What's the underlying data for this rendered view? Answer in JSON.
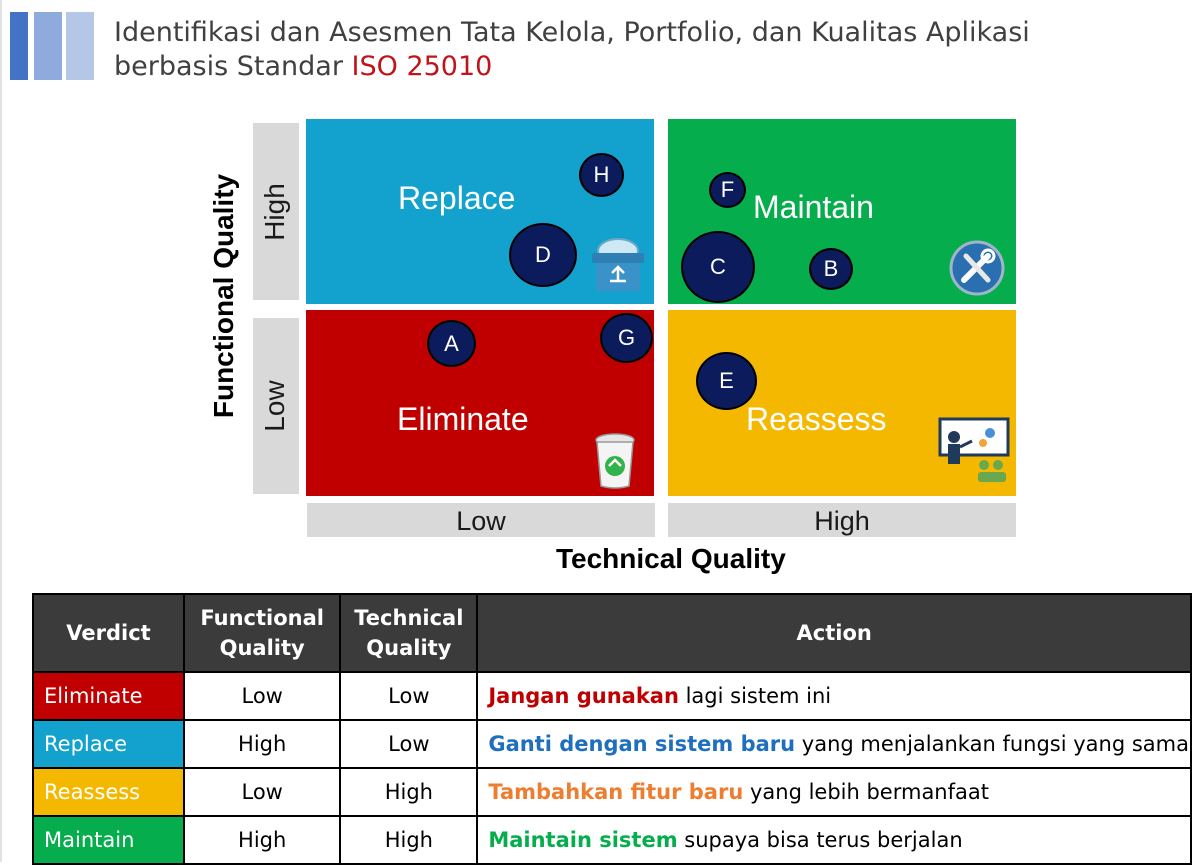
{
  "header": {
    "title_line1": "Identifikasi dan Asesmen Tata Kelola, Portfolio, dan Kualitas Aplikasi",
    "title_line2_prefix": "berbasis Standar ",
    "title_line2_accent": "ISO 25010",
    "accent_color": "#c0141b",
    "bar_colors": [
      "#4472c4",
      "#8faadc",
      "#b4c7e7"
    ]
  },
  "matrix": {
    "y_axis_title": "Functional Quality",
    "x_axis_title": "Technical Quality",
    "y_labels": {
      "high": "High",
      "low": "Low"
    },
    "x_labels": {
      "low": "Low",
      "high": "High"
    },
    "quadrants": {
      "replace": {
        "label": "Replace",
        "color": "#12a2cd",
        "icon": "recycle-bin-box-icon"
      },
      "maintain": {
        "label": "Maintain",
        "color": "#06ad4d",
        "icon": "wrench-screwdriver-icon"
      },
      "eliminate": {
        "label": "Eliminate",
        "color": "#c00000",
        "icon": "trash-recycle-icon"
      },
      "reassess": {
        "label": "Reassess",
        "color": "#f5b800",
        "icon": "presentation-board-icon"
      }
    },
    "bubbles": [
      "A",
      "B",
      "C",
      "D",
      "E",
      "F",
      "G",
      "H"
    ]
  },
  "table": {
    "headers": {
      "verdict": "Verdict",
      "functional_line1": "Functional",
      "functional_line2": "Quality",
      "technical_line1": "Technical",
      "technical_line2": "Quality",
      "action": "Action"
    },
    "rows": [
      {
        "verdict": "Eliminate",
        "verdict_color": "#c00000",
        "functional": "Low",
        "technical": "Low",
        "action_bold": "Jangan gunakan",
        "action_bold_color": "#c00000",
        "action_rest": " lagi sistem ini"
      },
      {
        "verdict": "Replace",
        "verdict_color": "#12a2cd",
        "functional": "High",
        "technical": "Low",
        "action_bold": "Ganti dengan sistem baru",
        "action_bold_color": "#1f6fbf",
        "action_rest": " yang menjalankan fungsi yang sama"
      },
      {
        "verdict": "Reassess",
        "verdict_color": "#f5b800",
        "functional": "Low",
        "technical": "High",
        "action_bold": "Tambahkan fitur baru",
        "action_bold_color": "#ed7d31",
        "action_rest": " yang lebih bermanfaat"
      },
      {
        "verdict": "Maintain",
        "verdict_color": "#06ad4d",
        "functional": "High",
        "technical": "High",
        "action_bold": "Maintain sistem",
        "action_bold_color": "#06ad4d",
        "action_rest": " supaya bisa terus berjalan"
      }
    ]
  }
}
